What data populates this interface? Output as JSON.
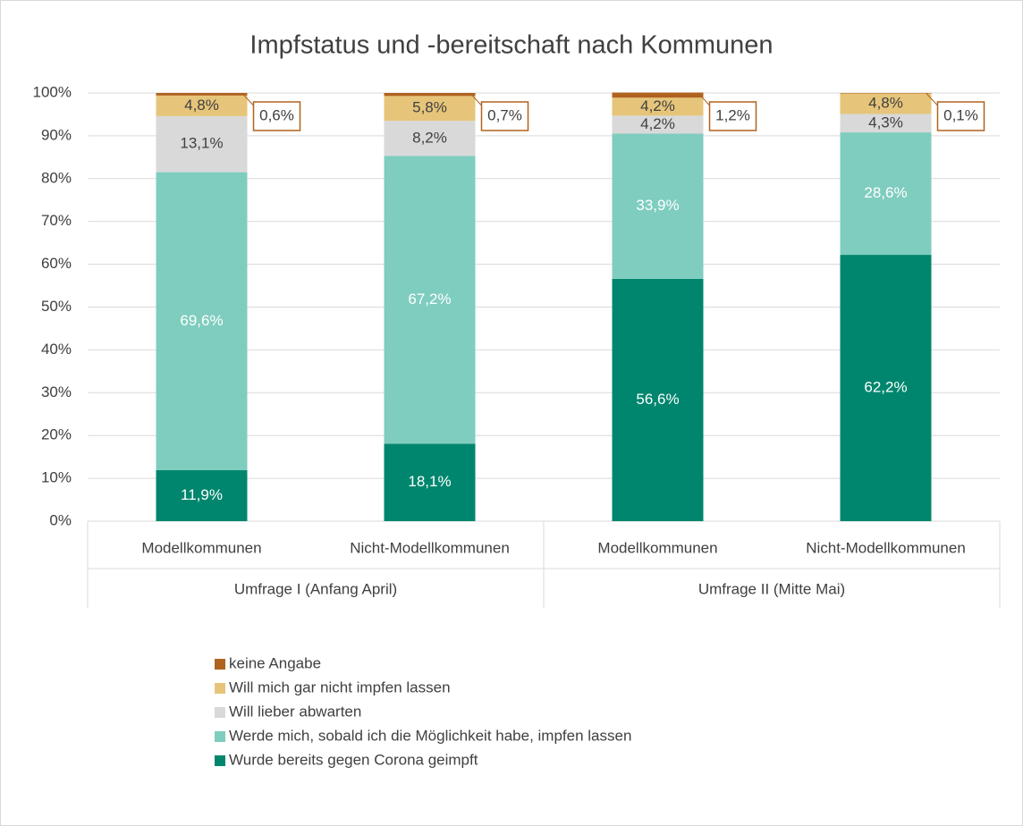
{
  "chart_data": {
    "type": "stacked_bar",
    "title": "Impfstatus und -bereitschaft nach Kommunen",
    "categories": [
      "Modellkommunen",
      "Nicht-Modellkommunen",
      "Modellkommunen",
      "Nicht-Modellkommunen"
    ],
    "groups": [
      "Umfrage I (Anfang April)",
      "Umfrage II (Mitte Mai)"
    ],
    "series": [
      {
        "name": "Wurde bereits gegen Corona geimpft",
        "color": "#00866e",
        "values": [
          11.9,
          18.1,
          56.6,
          62.2
        ],
        "value_labels": [
          "11,9%",
          "18,1%",
          "56,6%",
          "62,2%"
        ]
      },
      {
        "name": "Werde mich, sobald ich die Möglichkeit habe, impfen lassen",
        "color": "#7fcdbf",
        "values": [
          69.6,
          67.2,
          33.9,
          28.6
        ],
        "value_labels": [
          "69,6%",
          "67,2%",
          "33,9%",
          "28,6%"
        ]
      },
      {
        "name": "Will lieber abwarten",
        "color": "#d9d9d9",
        "values": [
          13.1,
          8.2,
          4.2,
          4.3
        ],
        "value_labels": [
          "13,1%",
          "8,2%",
          "4,2%",
          "4,3%"
        ]
      },
      {
        "name": "Will mich gar nicht impfen lassen",
        "color": "#e6c57a",
        "values": [
          4.8,
          5.8,
          4.2,
          4.8
        ],
        "value_labels": [
          "4,8%",
          "5,8%",
          "4,2%",
          "4,8%"
        ]
      },
      {
        "name": "keine Angabe",
        "color": "#b0621f",
        "values": [
          0.6,
          0.7,
          1.2,
          0.1
        ],
        "value_labels": [
          "0,6%",
          "0,7%",
          "1,2%",
          "0,1%"
        ]
      }
    ],
    "ylim": [
      0,
      100
    ],
    "yticks": [
      {
        "value": 0,
        "label": "0%"
      },
      {
        "value": 10,
        "label": "10%"
      },
      {
        "value": 20,
        "label": "20%"
      },
      {
        "value": 30,
        "label": "30%"
      },
      {
        "value": 40,
        "label": "40%"
      },
      {
        "value": 50,
        "label": "50%"
      },
      {
        "value": 60,
        "label": "60%"
      },
      {
        "value": 70,
        "label": "70%"
      },
      {
        "value": 80,
        "label": "80%"
      },
      {
        "value": 90,
        "label": "90%"
      },
      {
        "value": 100,
        "label": "100%"
      }
    ],
    "grid": true,
    "legend": "bottom"
  }
}
